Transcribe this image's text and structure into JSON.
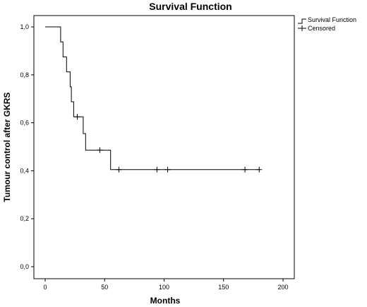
{
  "chart_data": {
    "type": "line",
    "title": "Survival Function",
    "xlabel": "Months",
    "ylabel": "Tumour control after GKRS",
    "xlim": [
      0,
      200
    ],
    "ylim": [
      0,
      1
    ],
    "xticks": [
      0,
      50,
      100,
      150,
      200
    ],
    "xtick_labels": [
      "0",
      "50",
      "100",
      "150",
      "200"
    ],
    "yticks": [
      0,
      0.2,
      0.4,
      0.6,
      0.8,
      1.0
    ],
    "ytick_labels": [
      "0,0",
      "0,2",
      "0,4",
      "0,6",
      "0,8",
      "1,0"
    ],
    "grid": false,
    "legend_position": "top-right",
    "legend": [
      {
        "name": "Survival Function",
        "marker": "step"
      },
      {
        "name": "Censored",
        "marker": "plus"
      }
    ],
    "series": [
      {
        "name": "Survival Function",
        "step_points": [
          [
            0,
            1.0
          ],
          [
            13,
            1.0
          ],
          [
            13,
            0.9375
          ],
          [
            15,
            0.9375
          ],
          [
            15,
            0.875
          ],
          [
            18,
            0.875
          ],
          [
            18,
            0.8125
          ],
          [
            21,
            0.8125
          ],
          [
            21,
            0.75
          ],
          [
            22,
            0.75
          ],
          [
            22,
            0.6875
          ],
          [
            24,
            0.6875
          ],
          [
            24,
            0.625
          ],
          [
            32,
            0.625
          ],
          [
            32,
            0.555
          ],
          [
            34,
            0.555
          ],
          [
            34,
            0.486
          ],
          [
            55,
            0.486
          ],
          [
            55,
            0.405
          ],
          [
            180,
            0.405
          ]
        ]
      },
      {
        "name": "Censored",
        "points": [
          [
            27,
            0.625
          ],
          [
            46,
            0.486
          ],
          [
            62,
            0.405
          ],
          [
            94,
            0.405
          ],
          [
            103,
            0.405
          ],
          [
            168,
            0.405
          ],
          [
            180,
            0.405
          ]
        ]
      }
    ],
    "colors": {
      "line": "#000000",
      "axis": "#000000",
      "background": "#ffffff"
    }
  }
}
